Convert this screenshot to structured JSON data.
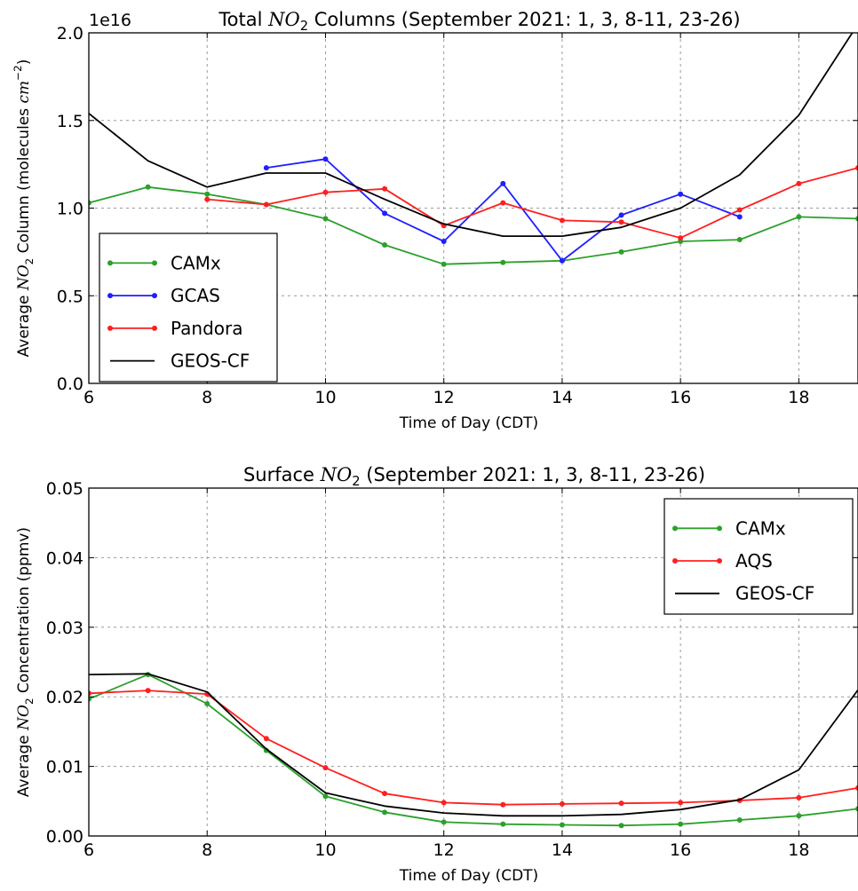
{
  "chart_data": [
    {
      "type": "line",
      "title": "Total NO2 Columns (September 2021: 1, 3, 8-11, 23-26)",
      "title_parts": {
        "before": "Total ",
        "species": "NO",
        "sub": "2",
        "after": " Columns (September 2021: 1, 3, 8-11, 23-26)"
      },
      "xlabel": "Time of Day (CDT)",
      "ylabel": "Average NO2 Column (molecules cm^-2)",
      "ylabel_parts": {
        "before": "Average ",
        "species": "NO",
        "sub": "2",
        "mid": " Column (molecules ",
        "unit": "cm",
        "sup": "−2",
        "after": ")"
      },
      "offset_label": "1e16",
      "xlim": [
        6,
        19
      ],
      "ylim": [
        0.0,
        2.0
      ],
      "xticks": [
        6,
        8,
        10,
        12,
        14,
        16,
        18
      ],
      "yticks": [
        0.0,
        0.5,
        1.0,
        1.5,
        2.0
      ],
      "ytick_labels": [
        "0.0",
        "0.5",
        "1.0",
        "1.5",
        "2.0"
      ],
      "grid": true,
      "legend_position": "lower-left",
      "series": [
        {
          "name": "CAMx",
          "color": "#2ca02c",
          "markers": true,
          "x": [
            6,
            7,
            8,
            9,
            10,
            11,
            12,
            13,
            14,
            15,
            16,
            17,
            18,
            19
          ],
          "y": [
            1.03,
            1.12,
            1.08,
            1.02,
            0.94,
            0.79,
            0.68,
            0.69,
            0.7,
            0.75,
            0.81,
            0.82,
            0.95,
            0.94
          ]
        },
        {
          "name": "GCAS",
          "color": "#1f1fff",
          "markers": true,
          "x": [
            9,
            10,
            11,
            12,
            13,
            14,
            15,
            16,
            17
          ],
          "y": [
            1.23,
            1.28,
            0.97,
            0.81,
            1.14,
            0.7,
            0.96,
            1.08,
            0.95
          ]
        },
        {
          "name": "Pandora",
          "color": "#ff1f1f",
          "markers": true,
          "x": [
            8,
            9,
            10,
            11,
            12,
            13,
            14,
            15,
            16,
            17,
            18,
            19
          ],
          "y": [
            1.05,
            1.02,
            1.09,
            1.11,
            0.9,
            1.03,
            0.93,
            0.92,
            0.83,
            0.99,
            1.14,
            1.23
          ]
        },
        {
          "name": "GEOS-CF",
          "color": "#000000",
          "markers": false,
          "x": [
            6,
            7,
            8,
            9,
            10,
            11,
            12,
            13,
            14,
            15,
            16,
            17,
            18,
            19
          ],
          "y": [
            1.54,
            1.27,
            1.12,
            1.2,
            1.2,
            1.05,
            0.91,
            0.84,
            0.84,
            0.89,
            1.0,
            1.19,
            1.53,
            2.05
          ]
        }
      ]
    },
    {
      "type": "line",
      "title": "Surface NO2 (September 2021: 1, 3, 8-11, 23-26)",
      "title_parts": {
        "before": "Surface ",
        "species": "NO",
        "sub": "2",
        "after": " (September 2021: 1, 3, 8-11, 23-26)"
      },
      "xlabel": "Time of Day (CDT)",
      "ylabel": "Average NO2 Concentration (ppmv)",
      "ylabel_parts": {
        "before": "Average ",
        "species": "NO",
        "sub": "2",
        "mid": " Concentration (ppmv)",
        "unit": "",
        "sup": "",
        "after": ""
      },
      "offset_label": "",
      "xlim": [
        6,
        19
      ],
      "ylim": [
        0.0,
        0.05
      ],
      "xticks": [
        6,
        8,
        10,
        12,
        14,
        16,
        18
      ],
      "yticks": [
        0.0,
        0.01,
        0.02,
        0.03,
        0.04,
        0.05
      ],
      "ytick_labels": [
        "0.00",
        "0.01",
        "0.02",
        "0.03",
        "0.04",
        "0.05"
      ],
      "grid": true,
      "legend_position": "upper-right",
      "series": [
        {
          "name": "CAMx",
          "color": "#2ca02c",
          "markers": true,
          "x": [
            6,
            7,
            8,
            9,
            10,
            11,
            12,
            13,
            14,
            15,
            16,
            17,
            18,
            19
          ],
          "y": [
            0.0197,
            0.0232,
            0.019,
            0.0123,
            0.0057,
            0.0034,
            0.002,
            0.0017,
            0.0016,
            0.0015,
            0.0017,
            0.0023,
            0.0029,
            0.0039
          ]
        },
        {
          "name": "AQS",
          "color": "#ff1f1f",
          "markers": true,
          "x": [
            6,
            7,
            8,
            9,
            10,
            11,
            12,
            13,
            14,
            15,
            16,
            17,
            18,
            19
          ],
          "y": [
            0.0205,
            0.0209,
            0.0204,
            0.014,
            0.0098,
            0.0061,
            0.0048,
            0.0045,
            0.0046,
            0.0047,
            0.0048,
            0.0051,
            0.0055,
            0.0069
          ]
        },
        {
          "name": "GEOS-CF",
          "color": "#000000",
          "markers": false,
          "x": [
            6,
            7,
            8,
            9,
            10,
            11,
            12,
            13,
            14,
            15,
            16,
            17,
            18,
            19
          ],
          "y": [
            0.0232,
            0.0233,
            0.0207,
            0.0125,
            0.0062,
            0.0043,
            0.0033,
            0.0029,
            0.0029,
            0.0031,
            0.0038,
            0.0052,
            0.0095,
            0.021
          ]
        }
      ]
    }
  ]
}
